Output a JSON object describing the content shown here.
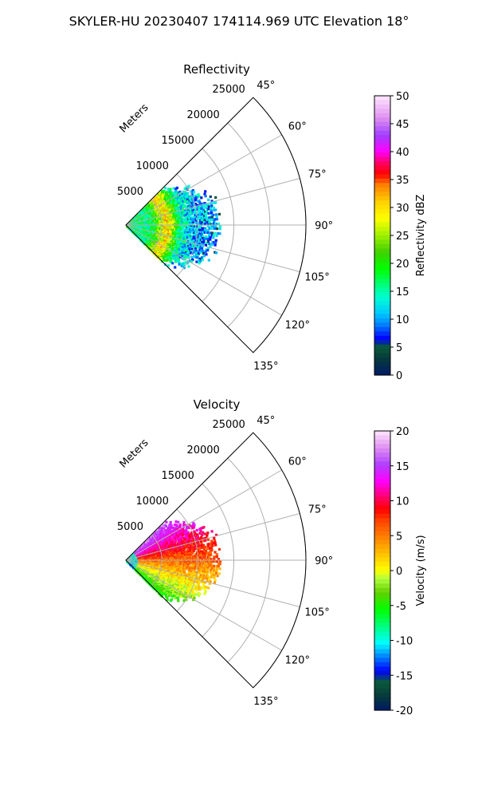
{
  "title": "SKYLER-HU  20230407  174114.969 UTC Elevation 18°",
  "chart_data": [
    {
      "type": "heatmap",
      "subtype": "polar-sector (PPI)",
      "title": "Reflectivity",
      "r_axis_label": "Meters",
      "r_ticks": [
        5000,
        10000,
        15000,
        20000,
        25000
      ],
      "rlim": [
        0,
        25000
      ],
      "theta_ticks": [
        "45°",
        "60°",
        "75°",
        "90°",
        "105°",
        "120°",
        "135°"
      ],
      "theta_range_deg": [
        45,
        135
      ],
      "grid": true,
      "colorbar": {
        "label": "Reflectivity dBZ",
        "range": [
          0,
          50
        ],
        "ticks": [
          0,
          5,
          10,
          15,
          20,
          25,
          30,
          35,
          40,
          45,
          50
        ],
        "colormap": "pyart_NWSRef"
      },
      "echo_region": {
        "azimuth_deg": [
          45,
          135
        ],
        "range_m": [
          0,
          12500
        ],
        "approx_value_range": [
          5,
          40
        ]
      }
    },
    {
      "type": "heatmap",
      "subtype": "polar-sector (PPI)",
      "title": "Velocity",
      "r_axis_label": "Meters",
      "r_ticks": [
        5000,
        10000,
        15000,
        20000,
        25000
      ],
      "rlim": [
        0,
        25000
      ],
      "theta_ticks": [
        "45°",
        "60°",
        "75°",
        "90°",
        "105°",
        "120°",
        "135°"
      ],
      "theta_range_deg": [
        45,
        135
      ],
      "grid": true,
      "colorbar": {
        "label": "Velocity (m/s)",
        "range": [
          -20,
          20
        ],
        "ticks": [
          -20,
          -15,
          -10,
          -5,
          0,
          5,
          10,
          15,
          20
        ],
        "colormap": "pyart_NWSVel"
      },
      "echo_region": {
        "azimuth_deg": [
          45,
          135
        ],
        "range_m": [
          0,
          12500
        ],
        "approx_value_range": [
          -12,
          16
        ]
      }
    }
  ],
  "colors": {
    "grid": "#b0b0b0",
    "frame": "#000000"
  }
}
